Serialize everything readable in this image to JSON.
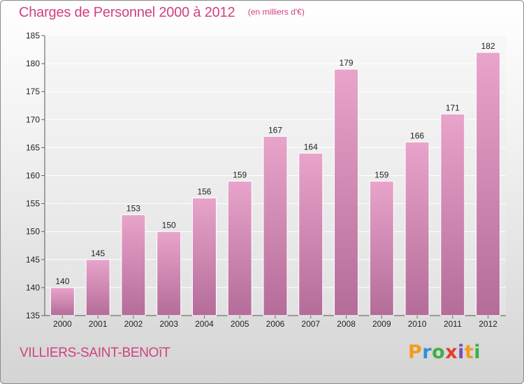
{
  "title": "Charges de Personnel 2000 à 2012",
  "unit_note": "(en milliers d'€)",
  "commune": "VILLIERS-SAINT-BENOîT",
  "logo": {
    "letters": [
      "P",
      "r",
      "o",
      "x",
      "i",
      "t",
      "i"
    ],
    "colors": [
      "#f39c1c",
      "#2f8fd6",
      "#3fae49",
      "#e43c2f",
      "#7a4bb8",
      "#f39c1c",
      "#3fae49"
    ]
  },
  "colors": {
    "accent": "#d0417f",
    "bar_top": "#e8a4cb",
    "bar_bottom": "#b46c98"
  },
  "chart_data": {
    "type": "bar",
    "title": "Charges de Personnel 2000 à 2012",
    "subtitle": "(en milliers d'€)",
    "categories": [
      "2000",
      "2001",
      "2002",
      "2003",
      "2004",
      "2005",
      "2006",
      "2007",
      "2008",
      "2009",
      "2010",
      "2011",
      "2012"
    ],
    "values": [
      140,
      145,
      153,
      150,
      156,
      159,
      167,
      164,
      179,
      159,
      166,
      171,
      182
    ],
    "ylim": [
      135,
      185
    ],
    "yticks": [
      135,
      140,
      145,
      150,
      155,
      160,
      165,
      170,
      175,
      180,
      185
    ],
    "grid": true,
    "xlabel": "",
    "ylabel": ""
  }
}
